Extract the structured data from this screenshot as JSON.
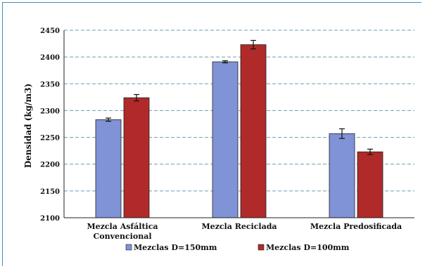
{
  "chart_data": {
    "type": "bar",
    "title": "",
    "xlabel": "",
    "ylabel": "Densidad (kg/m3)",
    "ylim": [
      2100,
      2450
    ],
    "yticks": [
      2100,
      2150,
      2200,
      2250,
      2300,
      2350,
      2400,
      2450
    ],
    "grid": true,
    "legend_position": "bottom",
    "categories": [
      [
        "Mezcla Asfáltica",
        "Convencional"
      ],
      [
        "Mezcla Reciclada"
      ],
      [
        "Mezcla Predosificada"
      ]
    ],
    "series": [
      {
        "name": "Mezclas D=150mm",
        "color": "#7f93d6",
        "values": [
          2283,
          2391,
          2257
        ],
        "errors": [
          3,
          2,
          9
        ]
      },
      {
        "name": "Mezclas D=100mm",
        "color": "#b02a2a",
        "values": [
          2324,
          2423,
          2223
        ],
        "errors": [
          6,
          8,
          5
        ]
      }
    ]
  },
  "colors": {
    "frame": "#3a8fb7",
    "grid": "#6f9bb0",
    "axis": "#222222"
  }
}
